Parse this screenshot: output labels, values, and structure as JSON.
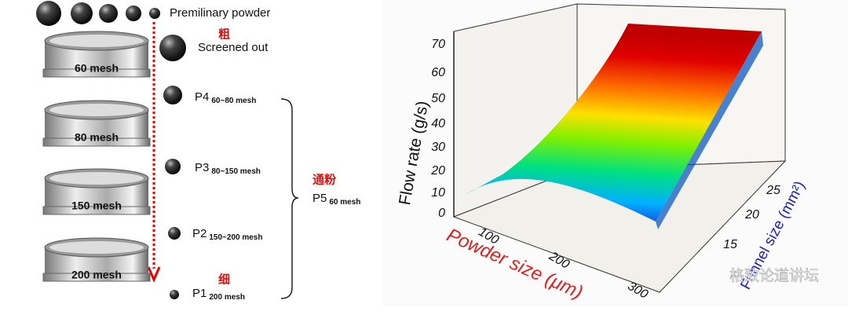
{
  "diagram": {
    "input": "Premilinary powder",
    "coarse": "粗",
    "screened_out": "Screened out",
    "sieves": [
      "60 mesh",
      "80 mesh",
      "150 mesh",
      "200 mesh"
    ],
    "fractions": [
      {
        "name": "P4",
        "range": "60~80 mesh"
      },
      {
        "name": "P3",
        "range": "80~150 mesh"
      },
      {
        "name": "P2",
        "range": "150~200 mesh"
      },
      {
        "name": "P1",
        "range": "200 mesh"
      }
    ],
    "through": "通粉",
    "combined": {
      "name": "P5",
      "range": "60 mesh"
    },
    "fine": "细"
  },
  "plot": {
    "y_label": "Flow rate (g/s)",
    "yticks": [
      0,
      10,
      20,
      30,
      40,
      50,
      60,
      70
    ],
    "x_label": "Powder size (μm)",
    "xticks": [
      100,
      200,
      300
    ],
    "z_label": "Funnel size (mm²)",
    "zticks": [
      15,
      20,
      25
    ]
  },
  "watermark": "格致论道讲坛"
}
